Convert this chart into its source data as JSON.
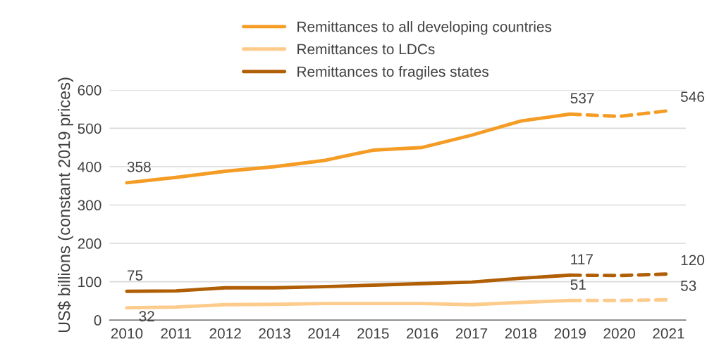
{
  "chart_data": {
    "type": "line",
    "ylabel": "US$ billions (constant 2019 prices)",
    "categories": [
      "2010",
      "2011",
      "2012",
      "2013",
      "2014",
      "2015",
      "2016",
      "2017",
      "2018",
      "2019",
      "2020",
      "2021"
    ],
    "series": [
      {
        "name": "Remittances to all developing countries",
        "color": "#f59c25",
        "values": [
          358,
          372,
          388,
          400,
          416,
          443,
          450,
          482,
          519,
          537,
          null,
          null
        ],
        "value_labels": [
          "358",
          null,
          null,
          null,
          null,
          null,
          null,
          null,
          null,
          "537",
          null,
          null
        ]
      },
      {
        "name": "Remittances to LDCs",
        "color": "#fdcb8b",
        "values": [
          32,
          34,
          40,
          41,
          43,
          43,
          43,
          40,
          46,
          51,
          null,
          null
        ],
        "value_labels": [
          "32",
          null,
          null,
          null,
          null,
          null,
          null,
          null,
          null,
          "51",
          null,
          null
        ]
      },
      {
        "name": "Remittances to fragiles states",
        "color": "#b05f06",
        "values": [
          75,
          76,
          84,
          84,
          87,
          91,
          95,
          99,
          109,
          117,
          null,
          null
        ],
        "value_labels": [
          "75",
          null,
          null,
          null,
          null,
          null,
          null,
          null,
          null,
          "117",
          null,
          null
        ]
      },
      {
        "color": "#f59c25",
        "line_style": "dashed",
        "values": [
          null,
          null,
          null,
          null,
          null,
          null,
          null,
          null,
          null,
          537,
          531,
          546
        ],
        "value_labels": [
          null,
          null,
          null,
          null,
          null,
          null,
          null,
          null,
          null,
          null,
          null,
          "546"
        ]
      },
      {
        "color": "#fdcb8b",
        "line_style": "dashed",
        "values": [
          null,
          null,
          null,
          null,
          null,
          null,
          null,
          null,
          null,
          51,
          51,
          53
        ],
        "value_labels": [
          null,
          null,
          null,
          null,
          null,
          null,
          null,
          null,
          null,
          null,
          null,
          "53"
        ]
      },
      {
        "color": "#b05f06",
        "line_style": "dashed",
        "values": [
          null,
          null,
          null,
          null,
          null,
          null,
          null,
          null,
          null,
          117,
          116,
          120
        ],
        "value_labels": [
          null,
          null,
          null,
          null,
          null,
          null,
          null,
          null,
          null,
          null,
          null,
          "120"
        ]
      }
    ],
    "ylim": [
      0,
      600
    ],
    "yticks": [
      0,
      100,
      200,
      300,
      400,
      500,
      600
    ],
    "grid": "y",
    "legend": "top",
    "marker": "none",
    "line_style": "solid"
  }
}
